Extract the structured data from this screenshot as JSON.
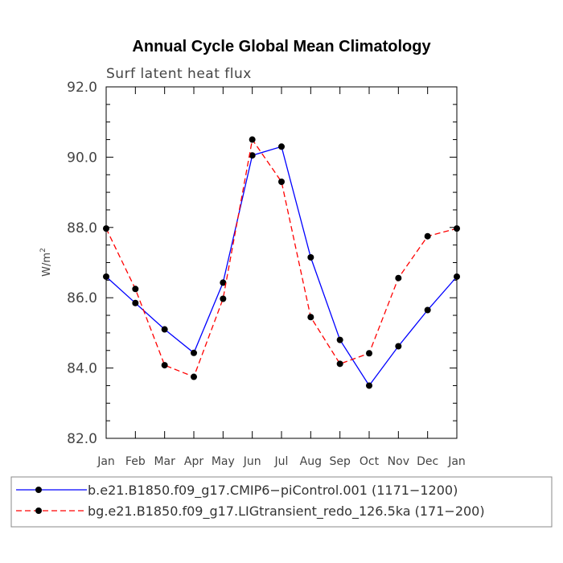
{
  "chart_data": {
    "type": "line",
    "title": "Annual Cycle Global Mean Climatology",
    "subtitle": "Surf latent heat flux",
    "ylabel_base": "W/m",
    "ylabel_sup": "2",
    "ylim": [
      82.0,
      92.0
    ],
    "yticks": [
      "82.0",
      "84.0",
      "86.0",
      "88.0",
      "90.0",
      "92.0"
    ],
    "categories": [
      "Jan",
      "Feb",
      "Mar",
      "Apr",
      "May",
      "Jun",
      "Jul",
      "Aug",
      "Sep",
      "Oct",
      "Nov",
      "Dec",
      "Jan"
    ],
    "series": [
      {
        "name": "b.e21.B1850.f09_g17.CMIP6−piControl.001 (1171−1200)",
        "color": "#0000ff",
        "dash": "solid",
        "values": [
          86.6,
          85.85,
          85.1,
          84.43,
          86.43,
          90.05,
          90.3,
          87.15,
          84.8,
          83.5,
          84.62,
          85.65,
          86.6
        ]
      },
      {
        "name": "bg.e21.B1850.f09_g17.LIGtransient_redo_126.5ka (171−200)",
        "color": "#ff0000",
        "dash": "dashed",
        "values": [
          87.97,
          86.25,
          84.08,
          83.75,
          85.97,
          90.5,
          89.3,
          85.45,
          84.12,
          84.42,
          86.56,
          87.75,
          87.97
        ]
      }
    ],
    "legend_position": "bottom"
  }
}
